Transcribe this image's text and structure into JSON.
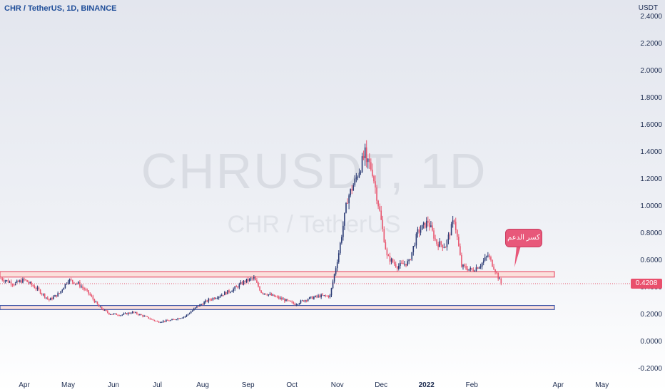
{
  "header": {
    "title": "CHR / TetherUS, 1D, BINANCE",
    "currency": "USDT"
  },
  "watermark": {
    "symbol": "CHRUSDT, 1D",
    "pair": "CHR / TetherUS"
  },
  "price_tag": {
    "label": "0.4208",
    "value": 0.4208,
    "color": "#e94f6c"
  },
  "annotation": {
    "text": "كسر الدعم"
  },
  "colors": {
    "up": "#2a3a74",
    "down": "#e8566f",
    "zone_fill": "#fbe0dc",
    "zone_stroke": "#e8566f",
    "zone2_stroke": "#3c55a8"
  },
  "chart_data": {
    "type": "candlestick",
    "title": "CHR / TetherUS, 1D, BINANCE",
    "ylabel": "USDT",
    "ylim": [
      -0.2,
      2.4
    ],
    "yticks": [
      "2.4000",
      "2.2000",
      "2.0000",
      "1.8000",
      "1.6000",
      "1.4000",
      "1.2000",
      "1.0000",
      "0.8000",
      "0.6000",
      "0.4000",
      "0.2000",
      "0.0000",
      "-0.2000"
    ],
    "ytick_values": [
      2.4,
      2.2,
      2.0,
      1.8,
      1.6,
      1.4,
      1.2,
      1.0,
      0.8,
      0.6,
      0.4,
      0.2,
      0.0,
      -0.2
    ],
    "xticks": [
      {
        "label": "Apr",
        "date": "2021-04-01"
      },
      {
        "label": "May",
        "date": "2021-05-01"
      },
      {
        "label": "Jun",
        "date": "2021-06-01"
      },
      {
        "label": "Jul",
        "date": "2021-07-01"
      },
      {
        "label": "Aug",
        "date": "2021-08-01"
      },
      {
        "label": "Sep",
        "date": "2021-09-01"
      },
      {
        "label": "Oct",
        "date": "2021-10-01"
      },
      {
        "label": "Nov",
        "date": "2021-11-01"
      },
      {
        "label": "Dec",
        "date": "2021-12-01"
      },
      {
        "label": "2022",
        "date": "2022-01-01"
      },
      {
        "label": "Feb",
        "date": "2022-02-01"
      },
      {
        "label": "Apr",
        "date": "2022-04-01"
      },
      {
        "label": "May",
        "date": "2022-05-01"
      }
    ],
    "series": [
      {
        "date": "2021-03-16",
        "close": 0.46
      },
      {
        "date": "2021-03-25",
        "close": 0.42
      },
      {
        "date": "2021-04-01",
        "close": 0.45
      },
      {
        "date": "2021-04-10",
        "close": 0.38
      },
      {
        "date": "2021-04-18",
        "close": 0.3
      },
      {
        "date": "2021-04-25",
        "close": 0.35
      },
      {
        "date": "2021-05-01",
        "close": 0.45
      },
      {
        "date": "2021-05-08",
        "close": 0.42
      },
      {
        "date": "2021-05-15",
        "close": 0.35
      },
      {
        "date": "2021-05-22",
        "close": 0.25
      },
      {
        "date": "2021-05-29",
        "close": 0.2
      },
      {
        "date": "2021-06-06",
        "close": 0.19
      },
      {
        "date": "2021-06-14",
        "close": 0.21
      },
      {
        "date": "2021-06-22",
        "close": 0.18
      },
      {
        "date": "2021-07-01",
        "close": 0.14
      },
      {
        "date": "2021-07-10",
        "close": 0.15
      },
      {
        "date": "2021-07-20",
        "close": 0.18
      },
      {
        "date": "2021-07-28",
        "close": 0.25
      },
      {
        "date": "2021-08-05",
        "close": 0.3
      },
      {
        "date": "2021-08-14",
        "close": 0.34
      },
      {
        "date": "2021-08-22",
        "close": 0.38
      },
      {
        "date": "2021-08-30",
        "close": 0.44
      },
      {
        "date": "2021-09-05",
        "close": 0.46
      },
      {
        "date": "2021-09-10",
        "close": 0.36
      },
      {
        "date": "2021-09-18",
        "close": 0.33
      },
      {
        "date": "2021-09-26",
        "close": 0.3
      },
      {
        "date": "2021-10-03",
        "close": 0.27
      },
      {
        "date": "2021-10-12",
        "close": 0.31
      },
      {
        "date": "2021-10-20",
        "close": 0.33
      },
      {
        "date": "2021-10-27",
        "close": 0.33
      },
      {
        "date": "2021-11-02",
        "close": 0.65
      },
      {
        "date": "2021-11-08",
        "close": 1.05
      },
      {
        "date": "2021-11-14",
        "close": 1.2
      },
      {
        "date": "2021-11-20",
        "close": 1.38
      },
      {
        "date": "2021-11-25",
        "close": 1.25
      },
      {
        "date": "2021-11-30",
        "close": 0.95
      },
      {
        "date": "2021-12-05",
        "close": 0.62
      },
      {
        "date": "2021-12-12",
        "close": 0.55
      },
      {
        "date": "2021-12-20",
        "close": 0.58
      },
      {
        "date": "2021-12-26",
        "close": 0.8
      },
      {
        "date": "2022-01-02",
        "close": 0.88
      },
      {
        "date": "2022-01-08",
        "close": 0.72
      },
      {
        "date": "2022-01-14",
        "close": 0.7
      },
      {
        "date": "2022-01-20",
        "close": 0.9
      },
      {
        "date": "2022-01-25",
        "close": 0.55
      },
      {
        "date": "2022-02-01",
        "close": 0.52
      },
      {
        "date": "2022-02-07",
        "close": 0.56
      },
      {
        "date": "2022-02-12",
        "close": 0.63
      },
      {
        "date": "2022-02-17",
        "close": 0.52
      },
      {
        "date": "2022-02-21",
        "close": 0.42
      }
    ],
    "peak": {
      "date": "2021-11-21",
      "high": 1.48
    },
    "zones": [
      {
        "name": "resistance-zone",
        "low": 0.47,
        "high": 0.51
      },
      {
        "name": "support-zone",
        "low": 0.23,
        "high": 0.26
      }
    ],
    "last_price": 0.4208,
    "grid": false
  }
}
